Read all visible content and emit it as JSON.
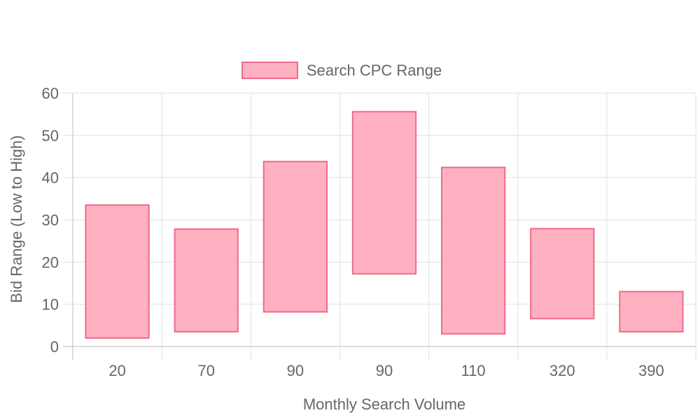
{
  "chart_data": {
    "type": "bar",
    "subtype": "floating-range",
    "categories": [
      "20",
      "70",
      "90",
      "90",
      "110",
      "320",
      "390"
    ],
    "series": [
      {
        "name": "Search CPC Range",
        "ranges": [
          [
            2,
            33.5
          ],
          [
            3.5,
            27.8
          ],
          [
            8.2,
            43.8
          ],
          [
            17.2,
            55.6
          ],
          [
            3,
            42.4
          ],
          [
            6.6,
            27.9
          ],
          [
            3.5,
            13
          ]
        ]
      }
    ],
    "xlabel": "Monthly Search Volume",
    "ylabel": "Bid Range (Low to High)",
    "ylim": [
      0,
      60
    ],
    "yticks": [
      0,
      10,
      20,
      30,
      40,
      50,
      60
    ],
    "grid": true,
    "legend": "top-center",
    "colors": {
      "bar_fill": "#ffb0c1",
      "bar_stroke": "#f06a8a",
      "grid": "#e1e1e1",
      "axis": "#bdbdbd",
      "text": "#666666"
    }
  }
}
